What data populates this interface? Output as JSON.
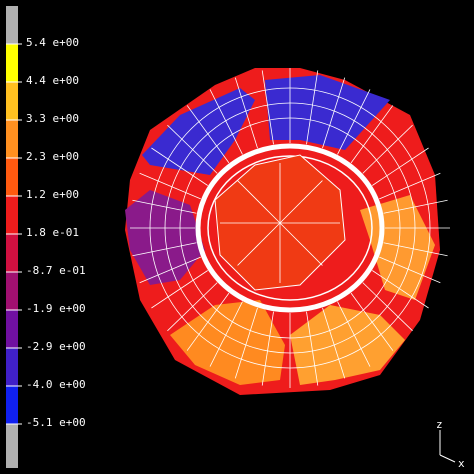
{
  "legend": {
    "labels": [
      "5.4 e+00",
      "4.4 e+00",
      "3.3 e+00",
      "2.3 e+00",
      "1.2 e+00",
      "1.8 e-01",
      "-8.7 e-01",
      "-1.9 e+00",
      "-2.9 e+00",
      "-4.0 e+00",
      "-5.1 e+00"
    ]
  },
  "axes": {
    "z": "z",
    "x": "x"
  }
}
